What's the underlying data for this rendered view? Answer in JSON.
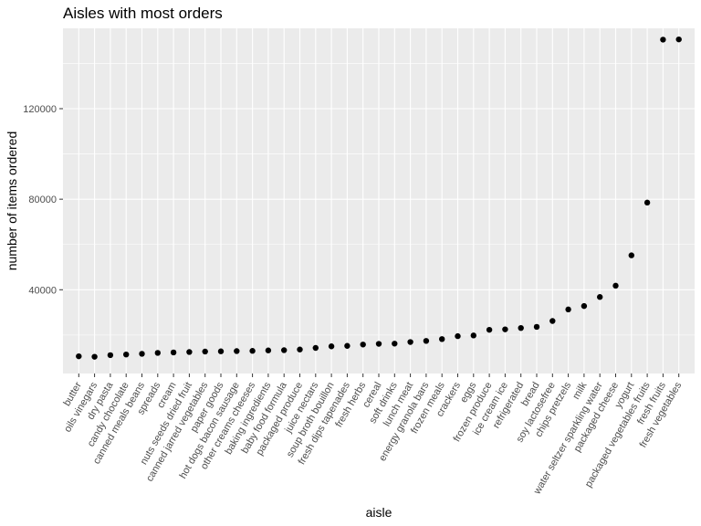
{
  "chart_data": {
    "type": "scatter",
    "title": "Aisles with most orders",
    "xlabel": "aisle",
    "ylabel": "number of items ordered",
    "ylim": [
      3000,
      155500
    ],
    "yticks": [
      40000,
      80000,
      120000
    ],
    "grid": true,
    "categories": [
      "butter",
      "oils vinegars",
      "dry pasta",
      "candy chocolate",
      "canned meals beans",
      "spreads",
      "cream",
      "nuts seeds dried fruit",
      "canned jarred vegetables",
      "paper goods",
      "hot dogs bacon sausage",
      "other creams cheeses",
      "baking ingredients",
      "baby food formula",
      "packaged produce",
      "juice nectars",
      "soup broth bouillon",
      "fresh dips tapenades",
      "fresh herbs",
      "cereal",
      "soft drinks",
      "lunch meat",
      "energy granola bars",
      "frozen meals",
      "crackers",
      "eggs",
      "frozen produce",
      "ice cream ice",
      "refrigerated",
      "bread",
      "soy lactosefree",
      "chips pretzels",
      "milk",
      "water seltzer sparkling water",
      "packaged cheese",
      "yogurt",
      "packaged vegetables fruits",
      "fresh fruits",
      "fresh vegetables"
    ],
    "values": [
      10600,
      10400,
      11100,
      11400,
      11700,
      12100,
      12300,
      12500,
      12700,
      12800,
      12900,
      13000,
      13200,
      13300,
      13600,
      14300,
      15000,
      15200,
      15800,
      16100,
      16200,
      16900,
      17400,
      18200,
      19500,
      19800,
      22300,
      22500,
      23100,
      23600,
      26200,
      31300,
      32800,
      36800,
      41800,
      55200,
      78500,
      150500,
      150600
    ]
  }
}
